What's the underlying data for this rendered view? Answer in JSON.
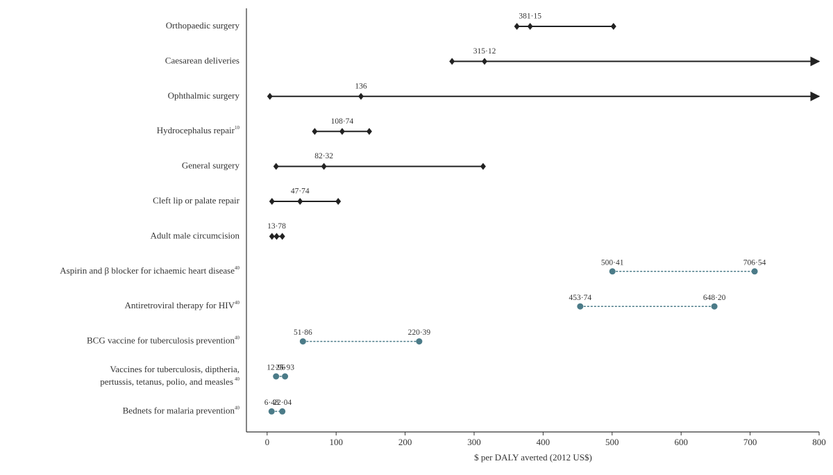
{
  "chart_data": {
    "type": "range",
    "x_label": "$ per DALY averted (2012 US$)",
    "xlim": [
      -30,
      800
    ],
    "xticks": [
      0,
      100,
      200,
      300,
      400,
      500,
      600,
      700,
      800
    ],
    "surgical_color": "#222222",
    "comparison_color": "#4b7b88",
    "items": [
      {
        "category": "Orthopaedic surgery",
        "low": 362,
        "estimate": 381.15,
        "high": 502,
        "estimate_label": "381·15"
      },
      {
        "category": "Caesarean deliveries",
        "low": 268,
        "estimate": 315.12,
        "high": null,
        "estimate_label": "315·12"
      },
      {
        "category": "Ophthalmic surgery",
        "low": 4,
        "estimate": 136,
        "high": null,
        "estimate_label": "136"
      },
      {
        "category": "Hydrocephalus repair",
        "ref": "10",
        "low": 69,
        "estimate": 108.74,
        "high": 148,
        "estimate_label": "108·74"
      },
      {
        "category": "General surgery",
        "low": 13,
        "estimate": 82.32,
        "high": 313,
        "estimate_label": "82·32"
      },
      {
        "category": "Cleft lip or palate repair",
        "low": 7,
        "estimate": 47.74,
        "high": 103,
        "estimate_label": "47·74"
      },
      {
        "category": "Adult male circumcision",
        "low": 7,
        "estimate": 13.78,
        "high": 22,
        "estimate_label": "13·78"
      },
      {
        "category": "Aspirin and β blocker for ichaemic heart disease",
        "ref": "40",
        "values": [
          500.41,
          706.54
        ],
        "value_labels": [
          "500·41",
          "706·54"
        ]
      },
      {
        "category": "Antiretroviral therapy for HIV",
        "ref": "40",
        "values": [
          453.74,
          648.2
        ],
        "value_labels": [
          "453·74",
          "648·20"
        ]
      },
      {
        "category": "BCG vaccine for tuberculosis prevention",
        "ref": "40",
        "values": [
          51.86,
          220.39
        ],
        "value_labels": [
          "51·86",
          "220·39"
        ]
      },
      {
        "category": [
          "Vaccines for tuberculosis, diptheria,",
          "pertussis, tetanus, polio, and measles"
        ],
        "ref": "40",
        "values": [
          12.96,
          25.93
        ],
        "value_labels": [
          "12·96",
          "25·93"
        ]
      },
      {
        "category": "Bednets for malaria prevention",
        "ref": "40",
        "values": [
          6.48,
          22.04
        ],
        "value_labels": [
          "6·48",
          "22·04"
        ]
      }
    ]
  }
}
